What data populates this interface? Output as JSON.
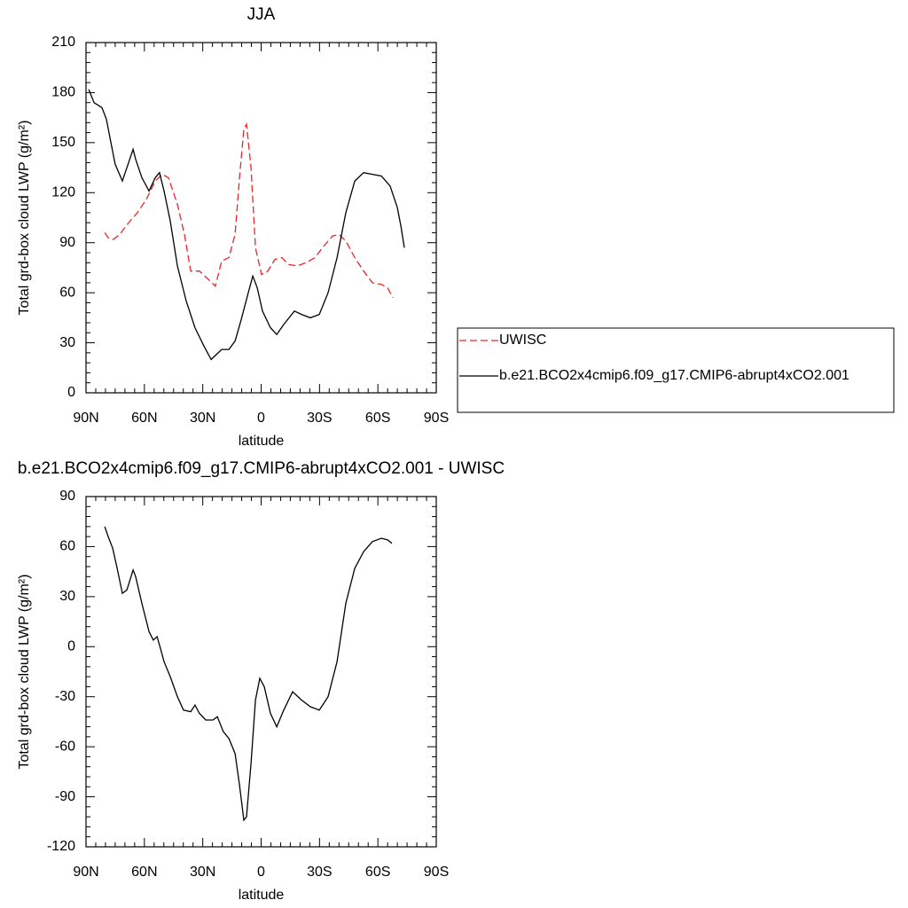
{
  "chart_data": [
    {
      "type": "line",
      "title": "JJA",
      "x_label": "latitude",
      "y_label": "Total grd-box cloud LWP (g/m²)",
      "xlim": [
        90,
        -90
      ],
      "xticks": [
        {
          "value": 90,
          "label": "90N"
        },
        {
          "value": 60,
          "label": "60N"
        },
        {
          "value": 30,
          "label": "30N"
        },
        0,
        {
          "value": -30,
          "label": "30S"
        },
        {
          "value": -60,
          "label": "60S"
        },
        {
          "value": -90,
          "label": "90S"
        }
      ],
      "ylim": [
        0,
        210
      ],
      "yticks": [
        0,
        30,
        60,
        90,
        120,
        150,
        180,
        210
      ],
      "legend": "right",
      "series": [
        {
          "name": "UWISC",
          "color": "#e8262a",
          "dash": true,
          "x": [
            80.4,
            78.6,
            75.9,
            72.7,
            68.1,
            63.6,
            59,
            54.4,
            50.8,
            47.6,
            43,
            39.4,
            36.2,
            31.7,
            27.1,
            23.5,
            20.3,
            16.6,
            13.4,
            11.1,
            8.9,
            7.5,
            5.2,
            2.9,
            -0.2,
            -3.4,
            -7.1,
            -10.7,
            -13.9,
            -18.5,
            -23,
            -27.6,
            -32.2,
            -36.7,
            -39.9,
            -43.5,
            -48.1,
            -52.7,
            -57.2,
            -61.8,
            -65,
            -67.7
          ],
          "values": [
            96,
            93,
            92,
            95,
            102,
            108,
            116,
            127,
            131,
            129,
            113,
            95,
            73,
            73,
            68,
            64,
            79,
            81,
            95,
            129,
            158,
            161,
            135,
            87,
            71,
            73,
            80,
            81,
            77,
            76,
            78,
            81,
            88,
            94,
            95,
            91,
            81,
            73,
            66,
            65,
            63,
            57
          ]
        },
        {
          "name": "b.e21.BCO2x4cmip6.f09_g17.CMIP6-abrupt4xCO2.001",
          "color": "#000000",
          "dash": false,
          "x": [
            88.6,
            85.9,
            81.8,
            79.5,
            77.2,
            75,
            71.3,
            69,
            65.8,
            64.5,
            61.3,
            57.6,
            54.4,
            52.2,
            49.9,
            46.7,
            43,
            38.5,
            34,
            29.4,
            25.7,
            23.9,
            20.3,
            16.6,
            13.4,
            10.2,
            6.6,
            4.3,
            2.0,
            -0.7,
            -4.8,
            -8.0,
            -11.6,
            -17.1,
            -20.8,
            -25.3,
            -29.9,
            -34.4,
            -39,
            -43.5,
            -48.1,
            -52.7,
            -57.2,
            -61.8,
            -66.3,
            -70,
            -71.8,
            -73.6
          ],
          "values": [
            182,
            174,
            171,
            164,
            150,
            137,
            127,
            135,
            146,
            140,
            129,
            121,
            129,
            132,
            121,
            103,
            76,
            55,
            39,
            28,
            20,
            22,
            26,
            26,
            31,
            44,
            60,
            70,
            63,
            49,
            39,
            35,
            41,
            49,
            47,
            45,
            47,
            60,
            81,
            108,
            127,
            132,
            131,
            130,
            124,
            111,
            100,
            87
          ]
        }
      ]
    },
    {
      "type": "line",
      "title": "b.e21.BCO2x4cmip6.f09_g17.CMIP6-abrupt4xCO2.001 - UWISC",
      "x_label": "latitude",
      "y_label": "Total grd-box cloud LWP (g/m²)",
      "xlim": [
        90,
        -90
      ],
      "xticks": [
        {
          "value": 90,
          "label": "90N"
        },
        {
          "value": 60,
          "label": "60N"
        },
        {
          "value": 30,
          "label": "30N"
        },
        0,
        {
          "value": -30,
          "label": "30S"
        },
        {
          "value": -60,
          "label": "60S"
        },
        {
          "value": -90,
          "label": "90S"
        }
      ],
      "ylim": [
        -120,
        90
      ],
      "yticks": [
        -120,
        -90,
        -60,
        -30,
        0,
        30,
        60,
        90
      ],
      "series": [
        {
          "color": "#000000",
          "dash": false,
          "x": [
            80.4,
            78.6,
            76.3,
            74,
            71.3,
            69,
            65.8,
            64.5,
            61.3,
            57.6,
            55.4,
            53.5,
            52.2,
            49.9,
            46.7,
            43,
            39.9,
            36.2,
            34,
            31.7,
            28.5,
            24.8,
            22.5,
            19.4,
            16.6,
            13.4,
            11.1,
            8.9,
            7.5,
            5.2,
            2.9,
            0.7,
            -1.6,
            -4.8,
            -8.0,
            -11.6,
            -16.2,
            -20.8,
            -25.3,
            -29.9,
            -34.4,
            -39,
            -43.5,
            -48.1,
            -52.7,
            -57.2,
            -61.8,
            -65,
            -67.2
          ],
          "values": [
            72,
            66,
            59,
            47,
            32,
            34,
            46,
            42,
            26,
            9,
            4,
            6,
            1,
            -9,
            -18,
            -30,
            -38,
            -39,
            -35,
            -40,
            -44,
            -44,
            -42,
            -51,
            -55,
            -64,
            -83,
            -104,
            -102,
            -70,
            -32,
            -19,
            -24,
            -40,
            -48,
            -38,
            -27,
            -32,
            -36,
            -38,
            -30,
            -9,
            26,
            47,
            57,
            63,
            65,
            64,
            62
          ]
        }
      ]
    }
  ]
}
